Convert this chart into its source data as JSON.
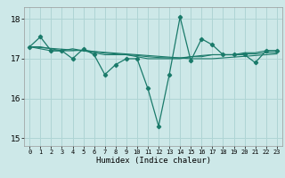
{
  "xlabel": "Humidex (Indice chaleur)",
  "ylabel": "",
  "background_color": "#cde8e8",
  "grid_color": "#afd4d4",
  "line_color": "#1a7a6a",
  "xlim": [
    -0.5,
    23.5
  ],
  "ylim": [
    14.8,
    18.3
  ],
  "yticks": [
    15,
    16,
    17,
    18
  ],
  "xticks": [
    0,
    1,
    2,
    3,
    4,
    5,
    6,
    7,
    8,
    9,
    10,
    11,
    12,
    13,
    14,
    15,
    16,
    17,
    18,
    19,
    20,
    21,
    22,
    23
  ],
  "series": [
    [
      17.3,
      17.55,
      17.2,
      17.2,
      17.0,
      17.25,
      17.1,
      16.6,
      16.85,
      17.0,
      17.0,
      16.25,
      15.3,
      16.6,
      18.05,
      16.95,
      17.5,
      17.35,
      17.1,
      17.1,
      17.1,
      16.9,
      17.2,
      17.2
    ],
    [
      17.3,
      17.3,
      17.25,
      17.2,
      17.25,
      17.2,
      17.15,
      17.1,
      17.1,
      17.1,
      17.05,
      17.0,
      17.0,
      17.0,
      17.0,
      17.05,
      17.05,
      17.1,
      17.1,
      17.1,
      17.15,
      17.15,
      17.2,
      17.2
    ],
    [
      17.3,
      17.28,
      17.26,
      17.24,
      17.22,
      17.2,
      17.18,
      17.16,
      17.14,
      17.12,
      17.1,
      17.08,
      17.06,
      17.04,
      17.02,
      17.0,
      17.0,
      17.0,
      17.02,
      17.04,
      17.06,
      17.08,
      17.1,
      17.12
    ],
    [
      17.3,
      17.25,
      17.2,
      17.2,
      17.2,
      17.22,
      17.18,
      17.14,
      17.12,
      17.1,
      17.08,
      17.05,
      17.03,
      17.02,
      17.02,
      17.05,
      17.08,
      17.1,
      17.1,
      17.1,
      17.12,
      17.12,
      17.15,
      17.15
    ]
  ]
}
